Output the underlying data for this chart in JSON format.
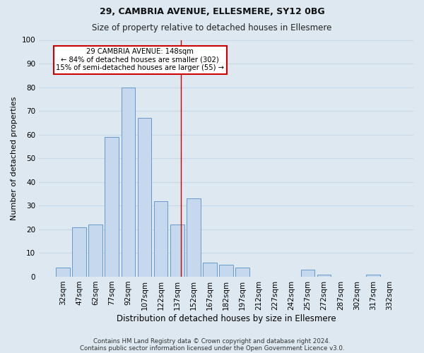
{
  "title1": "29, CAMBRIA AVENUE, ELLESMERE, SY12 0BG",
  "title2": "Size of property relative to detached houses in Ellesmere",
  "xlabel": "Distribution of detached houses by size in Ellesmere",
  "ylabel": "Number of detached properties",
  "footer1": "Contains HM Land Registry data © Crown copyright and database right 2024.",
  "footer2": "Contains public sector information licensed under the Open Government Licence v3.0.",
  "categories": [
    "32sqm",
    "47sqm",
    "62sqm",
    "77sqm",
    "92sqm",
    "107sqm",
    "122sqm",
    "137sqm",
    "152sqm",
    "167sqm",
    "182sqm",
    "197sqm",
    "212sqm",
    "227sqm",
    "242sqm",
    "257sqm",
    "272sqm",
    "287sqm",
    "302sqm",
    "317sqm",
    "332sqm"
  ],
  "values": [
    4,
    21,
    22,
    59,
    80,
    67,
    32,
    22,
    33,
    6,
    5,
    4,
    0,
    0,
    0,
    3,
    1,
    0,
    0,
    1,
    0
  ],
  "bar_color": "#c5d8ee",
  "bar_edge_color": "#6699cc",
  "grid_color": "#c8d8e8",
  "background_color": "#dde8f0",
  "annotation_text": "29 CAMBRIA AVENUE: 148sqm\n← 84% of detached houses are smaller (302)\n15% of semi-detached houses are larger (55) →",
  "annotation_box_color": "#ffffff",
  "annotation_box_edge": "#cc0000",
  "annotation_text_color": "#000000",
  "line_color": "#cc0000",
  "line_x_index": 7.733,
  "ylim": [
    0,
    100
  ],
  "yticks": [
    0,
    10,
    20,
    30,
    40,
    50,
    60,
    70,
    80,
    90,
    100
  ],
  "title1_fontsize": 9,
  "title2_fontsize": 8.5,
  "ylabel_fontsize": 8,
  "xlabel_fontsize": 8.5,
  "tick_fontsize": 7.5,
  "footer_fontsize": 6.2
}
